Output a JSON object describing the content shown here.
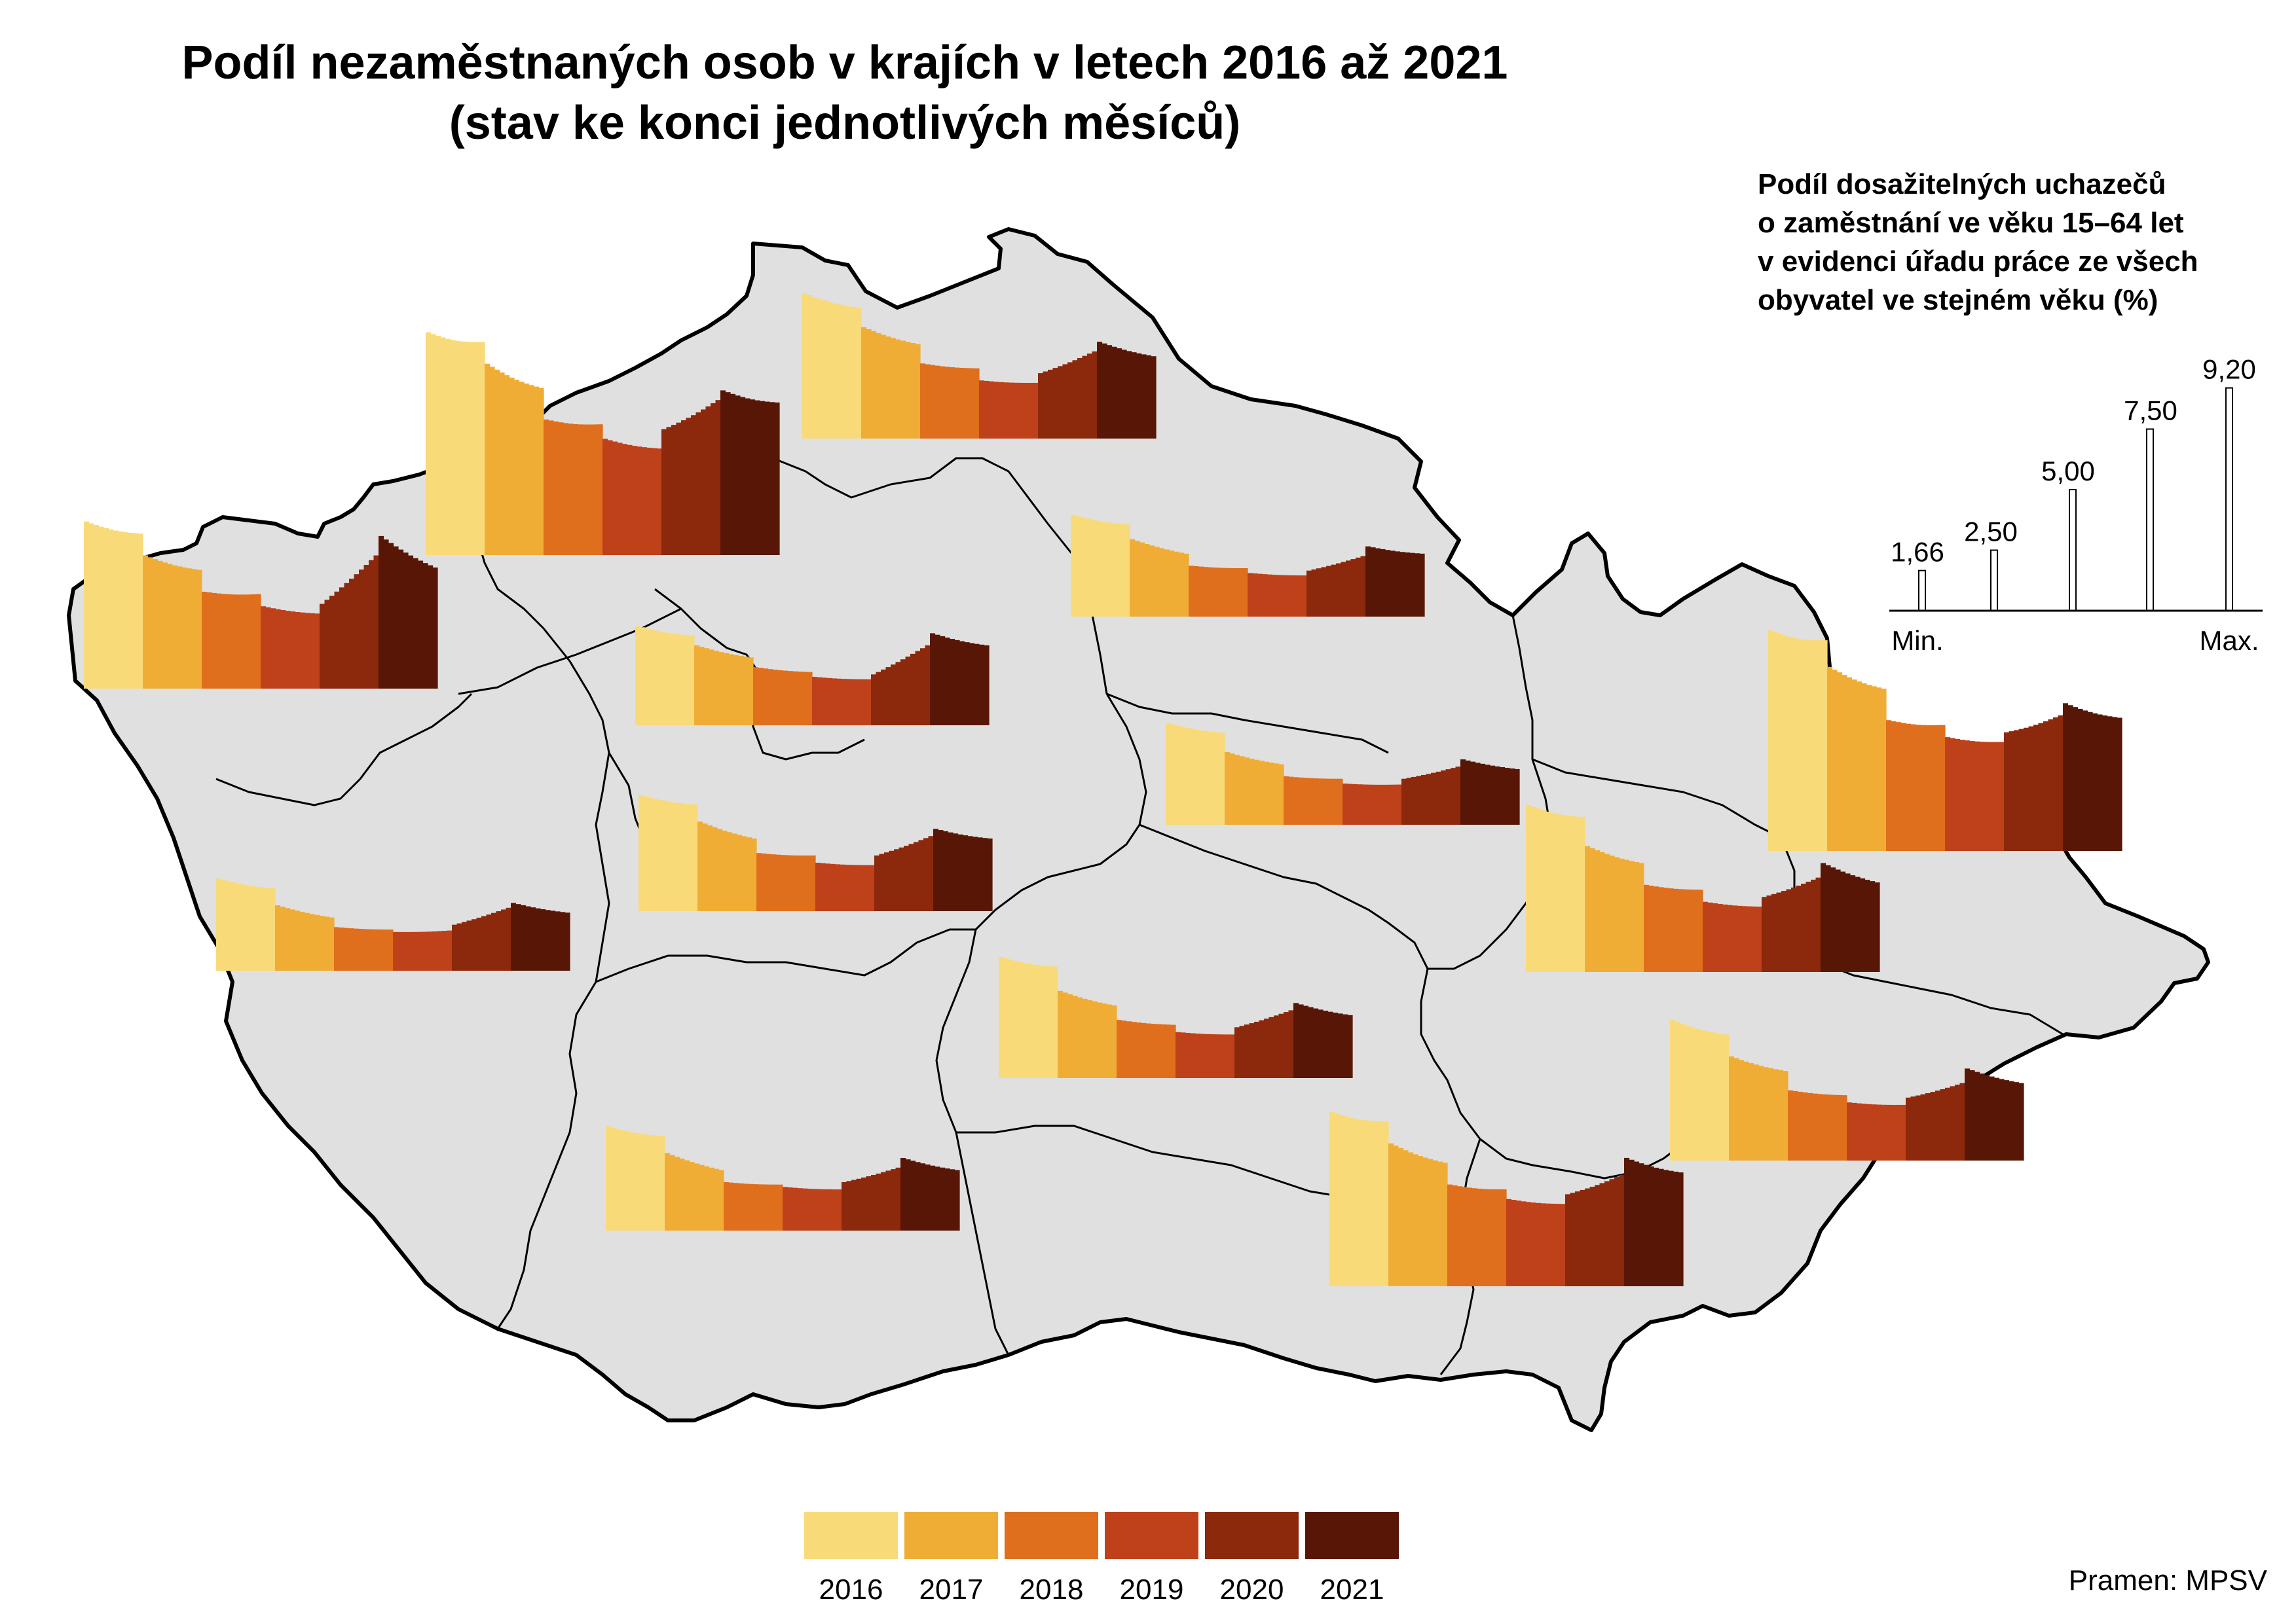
{
  "title": {
    "line1": "Podíl nezaměstnaných osob v krajích v letech 2016 až 2021",
    "line2": "(stav ke konci jednotlivých měsíců)"
  },
  "colors": {
    "background": "#ffffff",
    "map_fill": "#e0e0e0",
    "country_border": "#000000",
    "region_border": "#000000",
    "years": [
      "#f9da79",
      "#f0ad36",
      "#df6f1c",
      "#bf411a",
      "#8c280b",
      "#581706"
    ]
  },
  "scale_legend": {
    "title_lines": [
      "Podíl dosažitelných uchazečů",
      "o zaměstnání ve věku 15–64 let",
      "v evidenci úřadu práce ze všech",
      "obyvatel ve stejném věku (%)"
    ],
    "values": [
      1.66,
      2.5,
      5.0,
      7.5,
      9.2
    ],
    "labels": [
      "1,66",
      "2,50",
      "5,00",
      "7,50",
      "9,20"
    ],
    "min_label": "Min.",
    "max_label": "Max."
  },
  "legend": {
    "years": [
      "2016",
      "2017",
      "2018",
      "2019",
      "2020",
      "2021"
    ]
  },
  "source": "Pramen: MPSV",
  "chart_data": {
    "type": "bar",
    "unit": "%",
    "description_of_series": "monthly values Jan–Dec for each year, per region",
    "years": [
      "2016",
      "2017",
      "2018",
      "2019",
      "2020",
      "2021"
    ],
    "regions": [
      {
        "id": "karlovarsky",
        "anchors": [
          6.9,
          6.4,
          5.5,
          4.9,
          4.0,
          3.9,
          3.4,
          3.1,
          3.5,
          5.5,
          6.3,
          5.0
        ]
      },
      {
        "id": "ustecky",
        "anchors": [
          9.2,
          8.8,
          7.9,
          6.9,
          5.6,
          5.4,
          4.8,
          4.4,
          5.2,
          6.4,
          6.8,
          6.3
        ]
      },
      {
        "id": "liberecky",
        "anchors": [
          6.0,
          5.4,
          4.6,
          3.9,
          3.1,
          2.9,
          2.4,
          2.3,
          2.7,
          3.6,
          4.0,
          3.4
        ]
      },
      {
        "id": "kralovehradecky",
        "anchors": [
          4.2,
          3.8,
          3.2,
          2.6,
          2.1,
          2.0,
          1.8,
          1.7,
          1.9,
          2.5,
          2.9,
          2.6
        ]
      },
      {
        "id": "praha",
        "anchors": [
          4.1,
          3.7,
          3.3,
          2.8,
          2.4,
          2.2,
          2.0,
          1.9,
          2.1,
          3.3,
          3.8,
          3.3
        ]
      },
      {
        "id": "pardubicky",
        "anchors": [
          4.2,
          3.8,
          3.0,
          2.5,
          2.0,
          1.9,
          1.7,
          1.66,
          1.9,
          2.4,
          2.7,
          2.3
        ]
      },
      {
        "id": "stredocesky",
        "anchors": [
          4.8,
          4.4,
          3.7,
          3.0,
          2.4,
          2.3,
          2.0,
          1.9,
          2.3,
          3.1,
          3.4,
          3.0
        ]
      },
      {
        "id": "plzensky",
        "anchors": [
          3.8,
          3.4,
          2.7,
          2.2,
          1.8,
          1.7,
          1.6,
          1.66,
          1.9,
          2.6,
          2.8,
          2.4
        ]
      },
      {
        "id": "vysocina",
        "anchors": [
          5.0,
          4.6,
          3.6,
          3.0,
          2.4,
          2.2,
          1.9,
          1.8,
          2.1,
          2.8,
          3.1,
          2.6
        ]
      },
      {
        "id": "jihocesky",
        "anchors": [
          4.3,
          3.9,
          3.2,
          2.5,
          2.0,
          1.9,
          1.8,
          1.7,
          2.0,
          2.6,
          3.0,
          2.5
        ]
      },
      {
        "id": "olomoucky",
        "anchors": [
          6.9,
          6.4,
          5.2,
          4.5,
          3.6,
          3.4,
          2.9,
          2.7,
          3.1,
          3.9,
          4.5,
          3.7
        ]
      },
      {
        "id": "moravskoslezsky",
        "anchors": [
          9.1,
          8.7,
          7.6,
          6.7,
          5.4,
          5.2,
          4.7,
          4.5,
          4.9,
          5.6,
          6.1,
          5.5
        ]
      },
      {
        "id": "zlinsky",
        "anchors": [
          5.8,
          5.2,
          4.3,
          3.7,
          2.9,
          2.7,
          2.4,
          2.3,
          2.6,
          3.2,
          3.8,
          3.2
        ]
      },
      {
        "id": "jihomoravsky",
        "anchors": [
          7.2,
          6.8,
          5.9,
          5.1,
          4.2,
          4.0,
          3.6,
          3.4,
          3.8,
          4.6,
          5.3,
          4.7
        ]
      }
    ]
  }
}
